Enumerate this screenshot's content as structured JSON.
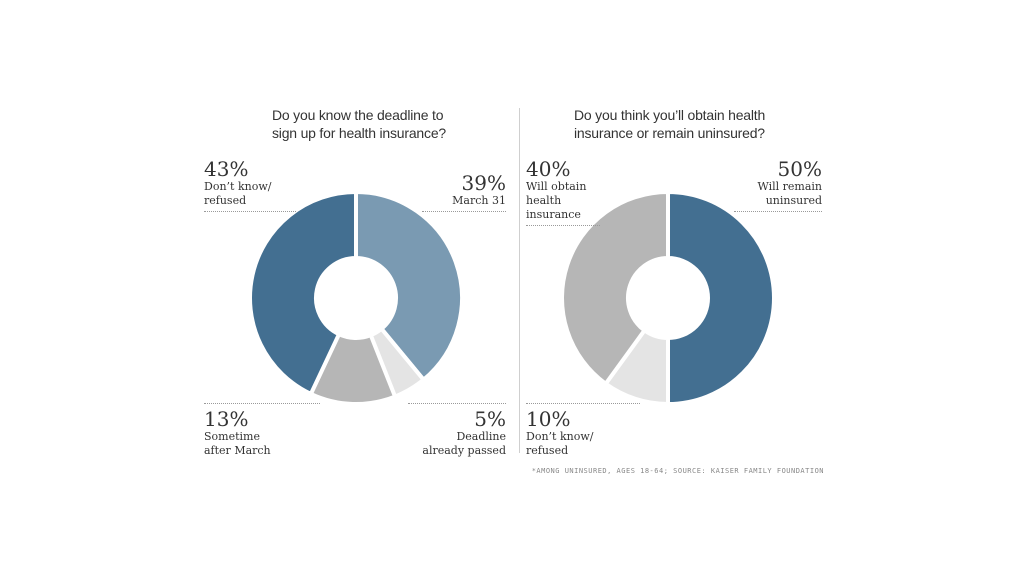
{
  "chart_data": [
    {
      "type": "pie",
      "title": "Do you know the deadline to sign up for health insurance?",
      "slices": [
        {
          "label": "March 31",
          "value": 39,
          "color": "#7a9ab2"
        },
        {
          "label": "Deadline already passed",
          "value": 5,
          "color": "#e4e4e4"
        },
        {
          "label": "Sometime after March",
          "value": 13,
          "color": "#b6b6b6"
        },
        {
          "label": "Don't know/ refused",
          "value": 43,
          "color": "#436f91"
        }
      ],
      "callouts": [
        {
          "pct": "43%",
          "label": "Don’t know/\nrefused"
        },
        {
          "pct": "39%",
          "label": "March 31"
        },
        {
          "pct": "13%",
          "label": "Sometime\nafter March"
        },
        {
          "pct": "5%",
          "label": "Deadline\nalready passed"
        }
      ]
    },
    {
      "type": "pie",
      "title": "Do you think you'll obtain health insurance or remain uninsured?",
      "slices": [
        {
          "label": "Will remain uninsured",
          "value": 50,
          "color": "#436f91"
        },
        {
          "label": "Don't know/ refused",
          "value": 10,
          "color": "#e4e4e4"
        },
        {
          "label": "Will obtain health insurance",
          "value": 40,
          "color": "#b6b6b6"
        }
      ],
      "callouts": [
        {
          "pct": "40%",
          "label": "Will obtain\nhealth\ninsurance"
        },
        {
          "pct": "50%",
          "label": "Will remain\nuninsured"
        },
        {
          "pct": "10%",
          "label": "Don’t know/\nrefused"
        }
      ]
    }
  ],
  "questions": [
    "Do you know the deadline to\nsign up for health insurance?",
    "Do you think you’ll obtain health\ninsurance or remain uninsured?"
  ],
  "footnote": "*Among uninsured, ages 18-64; Source: Kaiser Family Foundation"
}
